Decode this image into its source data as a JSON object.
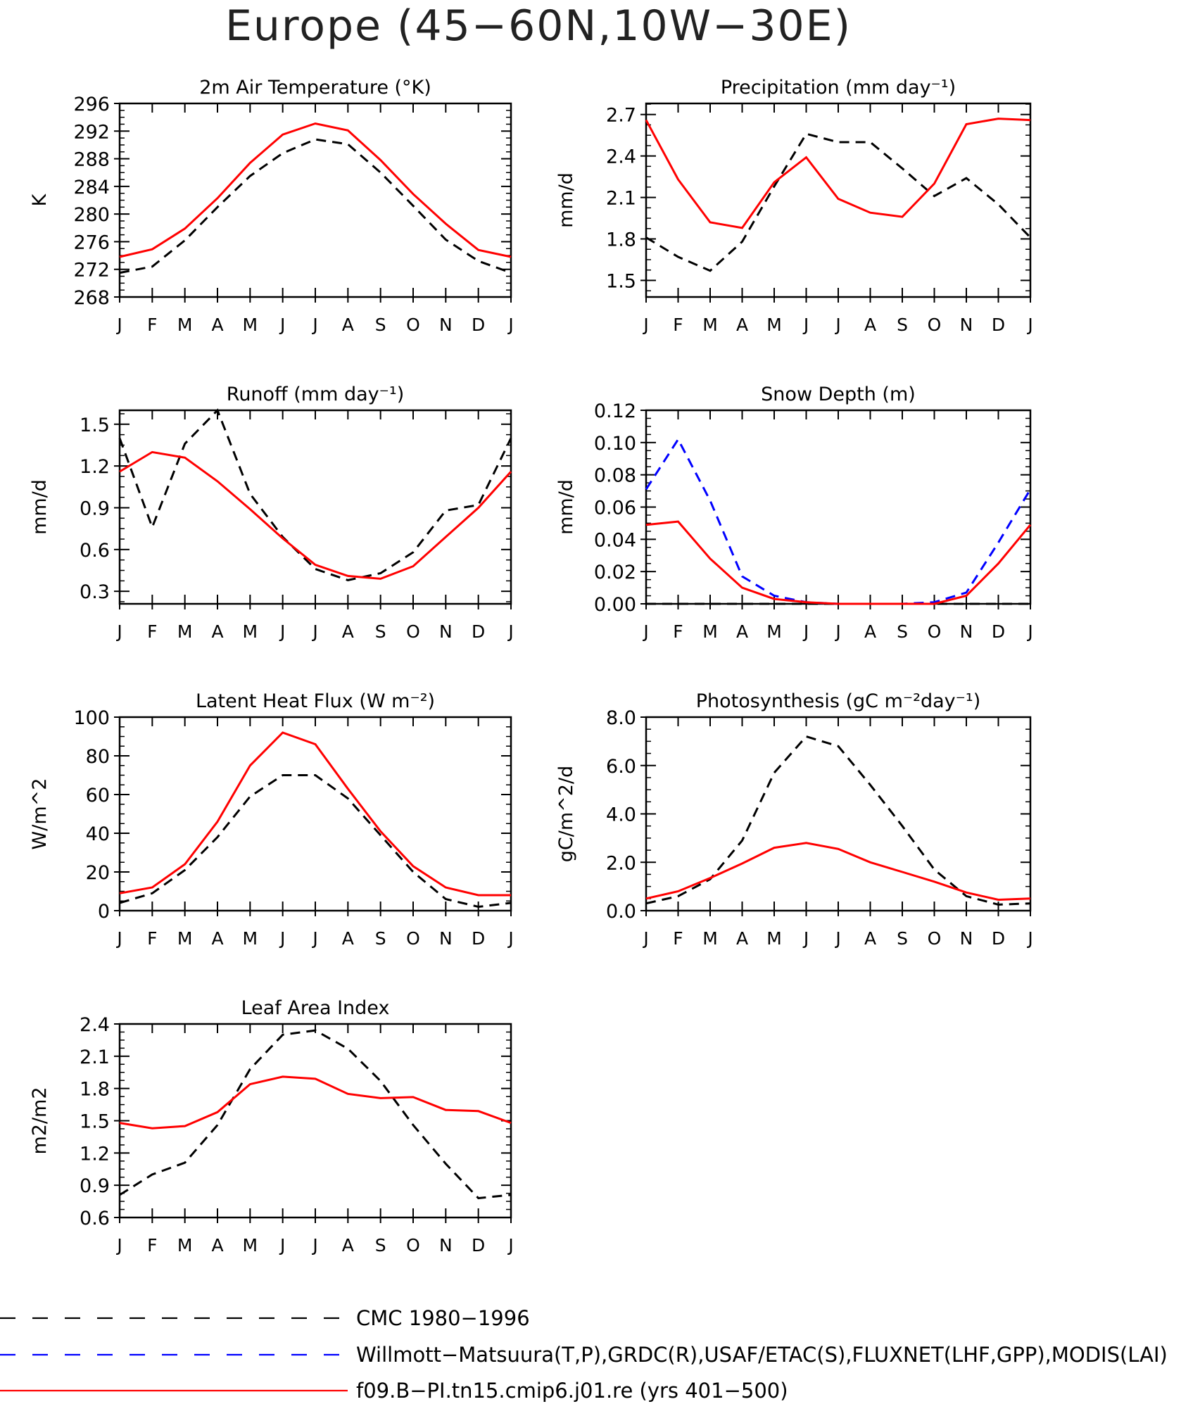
{
  "title": "Europe (45−60N,10W−30E)",
  "months": [
    "J",
    "F",
    "M",
    "A",
    "M",
    "J",
    "J",
    "A",
    "S",
    "O",
    "N",
    "D",
    "J"
  ],
  "colors": {
    "obs": "#000000",
    "obs2": "#0000ff",
    "model": "#ff0000"
  },
  "legend": [
    {
      "label": "CMC 1980−1996",
      "color": "#000000",
      "dash": true
    },
    {
      "label": "Willmott−Matsuura(T,P),GRDC(R),USAF/ETAC(S),FLUXNET(LHF,GPP),MODIS(LAI)",
      "color": "#0000ff",
      "dash": true
    },
    {
      "label": "f09.B−PI.tn15.cmip6.j01.re (yrs 401−500)",
      "color": "#ff0000",
      "dash": false
    }
  ],
  "chart_data": [
    {
      "type": "line",
      "title": "2m Air Temperature (°K)",
      "ylabel": "K",
      "ylim": [
        268,
        296
      ],
      "yticks": [
        "268",
        "272",
        "276",
        "280",
        "284",
        "288",
        "292",
        "296"
      ],
      "series": [
        {
          "name": "",
          "color": "#000000",
          "dash": true,
          "values": [
            271.5,
            272.4,
            276.2,
            281.0,
            285.5,
            288.8,
            290.8,
            290.1,
            286.0,
            281.2,
            276.3,
            273.2,
            271.5
          ]
        },
        {
          "name": "",
          "color": "#ff0000",
          "dash": false,
          "values": [
            273.8,
            274.9,
            277.9,
            282.3,
            287.4,
            291.5,
            293.1,
            292.1,
            287.8,
            282.9,
            278.6,
            274.8,
            273.8
          ]
        }
      ]
    },
    {
      "type": "line",
      "title": "Precipitation (mm day⁻¹)",
      "ylabel": "mm/d",
      "ylim": [
        1.38,
        2.78
      ],
      "yticks": [
        "1.5",
        "1.8",
        "2.1",
        "2.4",
        "2.7"
      ],
      "series": [
        {
          "name": "",
          "color": "#000000",
          "dash": true,
          "values": [
            1.81,
            1.67,
            1.57,
            1.78,
            2.18,
            2.56,
            2.5,
            2.5,
            2.31,
            2.11,
            2.24,
            2.05,
            1.81
          ]
        },
        {
          "name": "",
          "color": "#ff0000",
          "dash": false,
          "values": [
            2.66,
            2.23,
            1.92,
            1.88,
            2.21,
            2.39,
            2.09,
            1.99,
            1.96,
            2.2,
            2.63,
            2.67,
            2.66
          ]
        }
      ]
    },
    {
      "type": "line",
      "title": "Runoff (mm day⁻¹)",
      "ylabel": "mm/d",
      "ylim": [
        0.21,
        1.6
      ],
      "yticks": [
        "0.3",
        "0.6",
        "0.9",
        "1.2",
        "1.5"
      ],
      "series": [
        {
          "name": "",
          "color": "#000000",
          "dash": true,
          "values": [
            1.4,
            0.76,
            1.36,
            1.6,
            1.0,
            0.69,
            0.46,
            0.38,
            0.43,
            0.58,
            0.88,
            0.92,
            1.4
          ]
        },
        {
          "name": "",
          "color": "#ff0000",
          "dash": false,
          "values": [
            1.16,
            1.3,
            1.26,
            1.09,
            0.89,
            0.68,
            0.49,
            0.41,
            0.39,
            0.48,
            0.69,
            0.9,
            1.16
          ]
        }
      ]
    },
    {
      "type": "line",
      "title": "Snow Depth (m)",
      "ylabel": "mm/d",
      "ylim": [
        0.0,
        0.12
      ],
      "yticks": [
        "0.00",
        "0.02",
        "0.04",
        "0.06",
        "0.08",
        "0.10",
        "0.12"
      ],
      "series": [
        {
          "name": "",
          "color": "#000000",
          "dash": true,
          "values": [
            0.0,
            0.0,
            0.0,
            0.0,
            0.0,
            0.0,
            0.0,
            0.0,
            0.0,
            0.0,
            0.0,
            0.0,
            0.0
          ]
        },
        {
          "name": "",
          "color": "#0000ff",
          "dash": true,
          "values": [
            0.071,
            0.102,
            0.064,
            0.017,
            0.005,
            0.001,
            0.0,
            0.0,
            0.0,
            0.001,
            0.007,
            0.038,
            0.071
          ]
        },
        {
          "name": "",
          "color": "#ff0000",
          "dash": false,
          "values": [
            0.049,
            0.051,
            0.028,
            0.01,
            0.003,
            0.001,
            0.0,
            0.0,
            0.0,
            0.0,
            0.005,
            0.025,
            0.049
          ]
        }
      ]
    },
    {
      "type": "line",
      "title": "Latent Heat Flux (W m⁻²)",
      "ylabel": "W/m^2",
      "ylim": [
        0,
        100
      ],
      "yticks": [
        "0",
        "20",
        "40",
        "60",
        "80",
        "100"
      ],
      "series": [
        {
          "name": "",
          "color": "#000000",
          "dash": true,
          "values": [
            4,
            9,
            21,
            38,
            59,
            70,
            70,
            58,
            39,
            20,
            6,
            2,
            4
          ]
        },
        {
          "name": "",
          "color": "#ff0000",
          "dash": false,
          "values": [
            9,
            12,
            24,
            46,
            75,
            92,
            86,
            63,
            41,
            23,
            12,
            8,
            8
          ]
        }
      ]
    },
    {
      "type": "line",
      "title": "Photosynthesis (gC m⁻²day⁻¹)",
      "ylabel": "gC/m^2/d",
      "ylim": [
        0,
        8
      ],
      "yticks": [
        "0.0",
        "2.0",
        "4.0",
        "6.0",
        "8.0"
      ],
      "series": [
        {
          "name": "",
          "color": "#000000",
          "dash": true,
          "values": [
            0.3,
            0.6,
            1.3,
            2.9,
            5.7,
            7.2,
            6.8,
            5.2,
            3.5,
            1.7,
            0.6,
            0.25,
            0.3
          ]
        },
        {
          "name": "",
          "color": "#ff0000",
          "dash": false,
          "values": [
            0.5,
            0.8,
            1.35,
            1.95,
            2.6,
            2.8,
            2.55,
            2.0,
            1.6,
            1.2,
            0.75,
            0.45,
            0.5
          ]
        }
      ]
    },
    {
      "type": "line",
      "title": "Leaf Area Index",
      "ylabel": "m2/m2",
      "ylim": [
        0.6,
        2.4
      ],
      "yticks": [
        "0.6",
        "0.9",
        "1.2",
        "1.5",
        "1.8",
        "2.1",
        "2.4"
      ],
      "series": [
        {
          "name": "",
          "color": "#000000",
          "dash": true,
          "values": [
            0.81,
            1.0,
            1.11,
            1.46,
            1.98,
            2.3,
            2.34,
            2.17,
            1.87,
            1.46,
            1.1,
            0.78,
            0.81
          ]
        },
        {
          "name": "",
          "color": "#ff0000",
          "dash": false,
          "values": [
            1.48,
            1.43,
            1.45,
            1.58,
            1.84,
            1.91,
            1.89,
            1.75,
            1.71,
            1.72,
            1.6,
            1.59,
            1.48
          ]
        }
      ]
    }
  ]
}
